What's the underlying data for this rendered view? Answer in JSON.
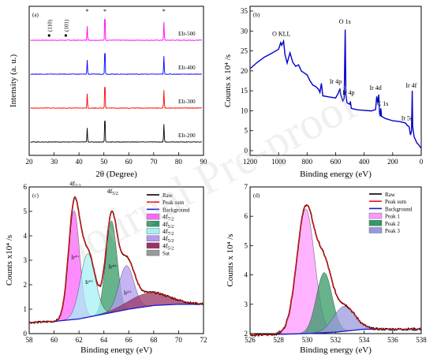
{
  "watermark": "Journal Pre-proof",
  "chart_data": [
    {
      "panel": "(a)",
      "type": "line",
      "xlabel": "2θ (Degree)",
      "ylabel": "Intensity (a. u.)",
      "xlim": [
        20,
        90
      ],
      "xticks": [
        20,
        30,
        40,
        50,
        60,
        70,
        80,
        90
      ],
      "series": [
        {
          "name": "EIr-500",
          "color": "#ff00ff",
          "offset": 3.0
        },
        {
          "name": "EIr-400",
          "color": "#0000ff",
          "offset": 2.0
        },
        {
          "name": "EIr-300",
          "color": "#ff0000",
          "offset": 1.0
        },
        {
          "name": "EIr-200",
          "color": "#000000",
          "offset": 0.0
        }
      ],
      "peaks": [
        {
          "x": 43.3,
          "h": 0.3
        },
        {
          "x": 50.4,
          "h": 0.62
        },
        {
          "x": 74.1,
          "h": 0.38
        }
      ],
      "annotations": [
        {
          "text": "(110)",
          "x": 28.0
        },
        {
          "text": "(101)",
          "x": 34.7
        },
        {
          "text": "*",
          "x": 43.3
        },
        {
          "text": "*",
          "x": 50.4
        },
        {
          "text": "*",
          "x": 74.1
        }
      ]
    },
    {
      "panel": "(b)",
      "type": "line",
      "xlabel": "Binding energy (eV)",
      "ylabel": "Counts x 10⁴ /s",
      "xlim": [
        1200,
        0
      ],
      "ylim": [
        0,
        35
      ],
      "xticks": [
        1200,
        1000,
        800,
        600,
        400,
        200,
        0
      ],
      "yticks": [
        0,
        5,
        10,
        15,
        20,
        25,
        30,
        35
      ],
      "color": "#0000cc",
      "points": [
        [
          1200,
          20.5
        ],
        [
          1150,
          22
        ],
        [
          1100,
          23.5
        ],
        [
          1050,
          24.5
        ],
        [
          1000,
          25.5
        ],
        [
          985,
          27
        ],
        [
          978,
          26.5
        ],
        [
          965,
          27.5
        ],
        [
          955,
          24
        ],
        [
          940,
          22
        ],
        [
          920,
          24.5
        ],
        [
          900,
          22
        ],
        [
          880,
          21
        ],
        [
          860,
          21.5
        ],
        [
          840,
          20
        ],
        [
          820,
          19.5
        ],
        [
          800,
          19
        ],
        [
          780,
          17.5
        ],
        [
          760,
          16.5
        ],
        [
          740,
          16
        ],
        [
          720,
          15.5
        ],
        [
          710,
          14.5
        ],
        [
          700,
          17
        ],
        [
          690,
          13.8
        ],
        [
          650,
          13.5
        ],
        [
          600,
          13.2
        ],
        [
          580,
          14.5
        ],
        [
          570,
          15.5
        ],
        [
          565,
          14
        ],
        [
          550,
          12.5
        ],
        [
          540,
          13
        ],
        [
          533,
          30.5
        ],
        [
          528,
          14
        ],
        [
          520,
          12
        ],
        [
          500,
          11.5
        ],
        [
          497,
          12.5
        ],
        [
          490,
          10.5
        ],
        [
          450,
          10.2
        ],
        [
          400,
          10
        ],
        [
          350,
          10
        ],
        [
          320,
          10.2
        ],
        [
          312,
          13.5
        ],
        [
          305,
          12
        ],
        [
          298,
          14
        ],
        [
          292,
          9.5
        ],
        [
          287,
          8.5
        ],
        [
          283,
          10.5
        ],
        [
          278,
          8.5
        ],
        [
          250,
          8
        ],
        [
          200,
          7.5
        ],
        [
          150,
          7.2
        ],
        [
          110,
          7
        ],
        [
          100,
          6.5
        ],
        [
          85,
          6
        ],
        [
          75,
          4
        ],
        [
          68,
          5
        ],
        [
          63,
          15
        ],
        [
          60,
          6
        ],
        [
          50,
          3.5
        ],
        [
          30,
          2
        ],
        [
          20,
          1.5
        ],
        [
          0,
          0.5
        ]
      ],
      "annotations": [
        {
          "text": "O KLL",
          "x": 980,
          "y": 28.8
        },
        {
          "text": "O 1s",
          "x": 535,
          "y": 31.8
        },
        {
          "text": "Ir 4p",
          "x": 600,
          "y": 16.8
        },
        {
          "text": "Ir 4p",
          "x": 510,
          "y": 14.0
        },
        {
          "text": "Ir 4d",
          "x": 320,
          "y": 15.2
        },
        {
          "text": "C 1s",
          "x": 270,
          "y": 11.3
        },
        {
          "text": "Ir 5s",
          "x": 100,
          "y": 7.6
        },
        {
          "text": "Ir 4f",
          "x": 70,
          "y": 15.8
        }
      ]
    },
    {
      "panel": "(c)",
      "type": "line",
      "xlabel": "Binding energy (eV)",
      "ylabel": "Counts x10⁴ /s",
      "xlim": [
        58,
        72
      ],
      "ylim": [
        0,
        6
      ],
      "xticks": [
        58,
        60,
        62,
        64,
        66,
        68,
        70,
        72
      ],
      "yticks": [
        0,
        1,
        2,
        3,
        4,
        5,
        6
      ],
      "legend": [
        "Raw",
        "Peak sum",
        "Background",
        "4f7/2",
        "4f5/2",
        "4f7/2",
        "4f5/2",
        "4f5/2",
        "Sat"
      ],
      "background": [
        [
          58,
          0.45
        ],
        [
          60,
          0.5
        ],
        [
          62,
          0.6
        ],
        [
          64,
          0.8
        ],
        [
          66,
          1.0
        ],
        [
          68,
          1.15
        ],
        [
          70,
          1.2
        ],
        [
          72,
          1.2
        ]
      ],
      "peaks": [
        {
          "name": "4f7/2",
          "label": "Ir⁴⁺",
          "center": 61.6,
          "height": 4.45,
          "width": 0.45,
          "color": "#ff66ff"
        },
        {
          "name": "4f5/2",
          "label": "Ir⁴⁺",
          "center": 64.6,
          "height": 3.75,
          "width": 0.45,
          "color": "#339966"
        },
        {
          "name": "4f7/2",
          "label": "Ir³⁺",
          "center": 62.7,
          "height": 2.6,
          "width": 0.6,
          "color": "#a6f0f5"
        },
        {
          "name": "4f5/2",
          "label": "Ir³⁺",
          "center": 65.8,
          "height": 1.8,
          "width": 0.6,
          "color": "#b39cf0"
        },
        {
          "name": "Sat",
          "label": "",
          "center": 67.6,
          "height": 0.55,
          "width": 1.6,
          "color": "#993366"
        }
      ],
      "annotations": [
        {
          "text": "4f7/2",
          "x": 61.7,
          "y": 6.05
        },
        {
          "text": "4f5/2",
          "x": 64.7,
          "y": 5.75
        }
      ]
    },
    {
      "panel": "(d)",
      "type": "line",
      "xlabel": "Binding energy (eV)",
      "ylabel": "Counts x 10⁴ /s",
      "xlim": [
        526,
        538
      ],
      "ylim": [
        2,
        7
      ],
      "xticks": [
        526,
        528,
        530,
        532,
        534,
        536,
        538
      ],
      "yticks": [
        2,
        3,
        4,
        5,
        6,
        7
      ],
      "legend": [
        "Raw",
        "Peak sum",
        "Background",
        "Peak 1",
        "Peak 2",
        "Peak 3"
      ],
      "background": [
        [
          526,
          1.95
        ],
        [
          530,
          2.0
        ],
        [
          532,
          2.05
        ],
        [
          534,
          2.15
        ],
        [
          538,
          2.15
        ]
      ],
      "peaks": [
        {
          "name": "Peak 1",
          "center": 529.9,
          "height": 4.25,
          "width": 0.62,
          "color": "#ff99ff"
        },
        {
          "name": "Peak 2",
          "center": 531.2,
          "height": 2.05,
          "width": 0.55,
          "color": "#339966"
        },
        {
          "name": "Peak 3",
          "center": 532.6,
          "height": 0.85,
          "width": 0.75,
          "color": "#9999dd"
        }
      ]
    }
  ]
}
